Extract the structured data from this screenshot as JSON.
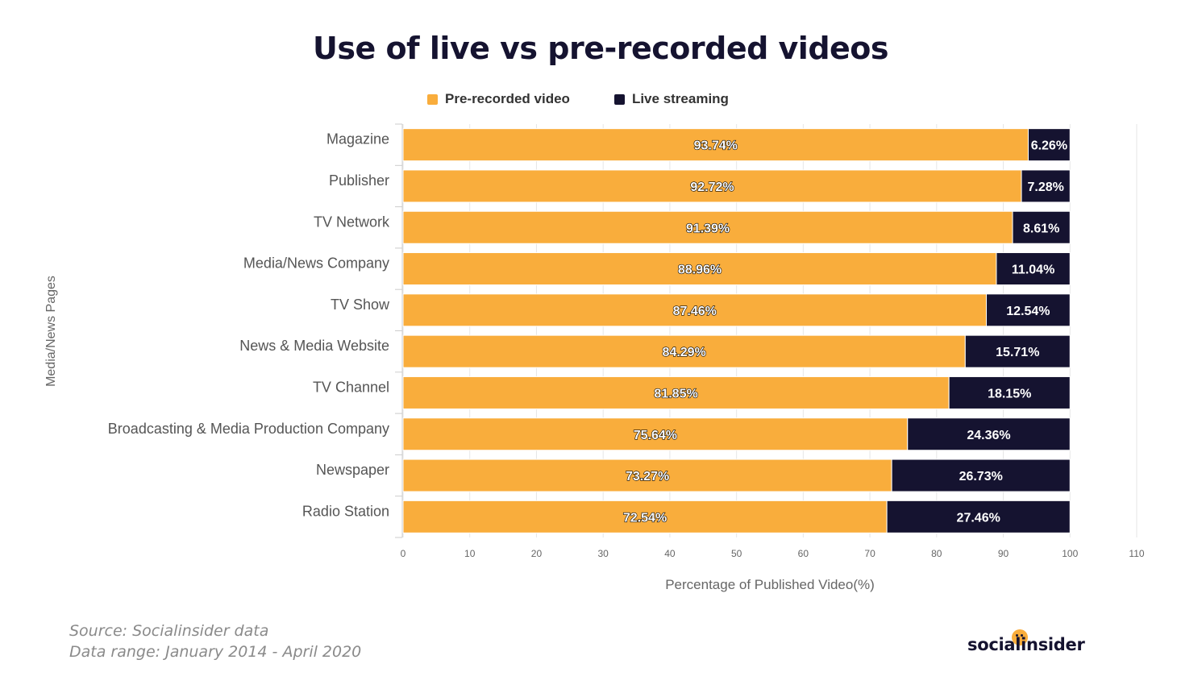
{
  "chart_data": {
    "type": "bar",
    "orientation": "horizontal",
    "stacked": true,
    "title": "Use of live vs pre-recorded videos",
    "xlabel": "Percentage of Published Video(%)",
    "ylabel": "Media/News Pages",
    "xlim": [
      0,
      110
    ],
    "x_ticks": [
      0,
      10,
      20,
      30,
      40,
      50,
      60,
      70,
      80,
      90,
      100,
      110
    ],
    "legend_position": "top-center",
    "grid": true,
    "categories": [
      "Magazine",
      "Publisher",
      "TV Network",
      "Media/News Company",
      "TV Show",
      "News & Media Website",
      "TV Channel",
      "Broadcasting & Media Production Company",
      "Newspaper",
      "Radio Station"
    ],
    "series": [
      {
        "name": "Pre-recorded video",
        "color": "#f9ad3c",
        "values": [
          93.74,
          92.72,
          91.39,
          88.96,
          87.46,
          84.29,
          81.85,
          75.64,
          73.27,
          72.54
        ],
        "labels": [
          "93.74%",
          "92.72%",
          "91.39%",
          "88.96%",
          "87.46%",
          "84.29%",
          "81.85%",
          "75.64%",
          "73.27%",
          "72.54%"
        ]
      },
      {
        "name": "Live streaming",
        "color": "#151330",
        "values": [
          6.26,
          7.28,
          8.61,
          11.04,
          12.54,
          15.71,
          18.15,
          24.36,
          26.73,
          27.46
        ],
        "labels": [
          "6.26%",
          "7.28%",
          "8.61%",
          "11.04%",
          "12.54%",
          "15.71%",
          "18.15%",
          "24.36%",
          "26.73%",
          "27.46%"
        ]
      }
    ]
  },
  "footer": {
    "source": "Source: Socialinsider data",
    "range": "Data range: January 2014 - April 2020"
  },
  "logo": {
    "text": "socialinsider"
  }
}
